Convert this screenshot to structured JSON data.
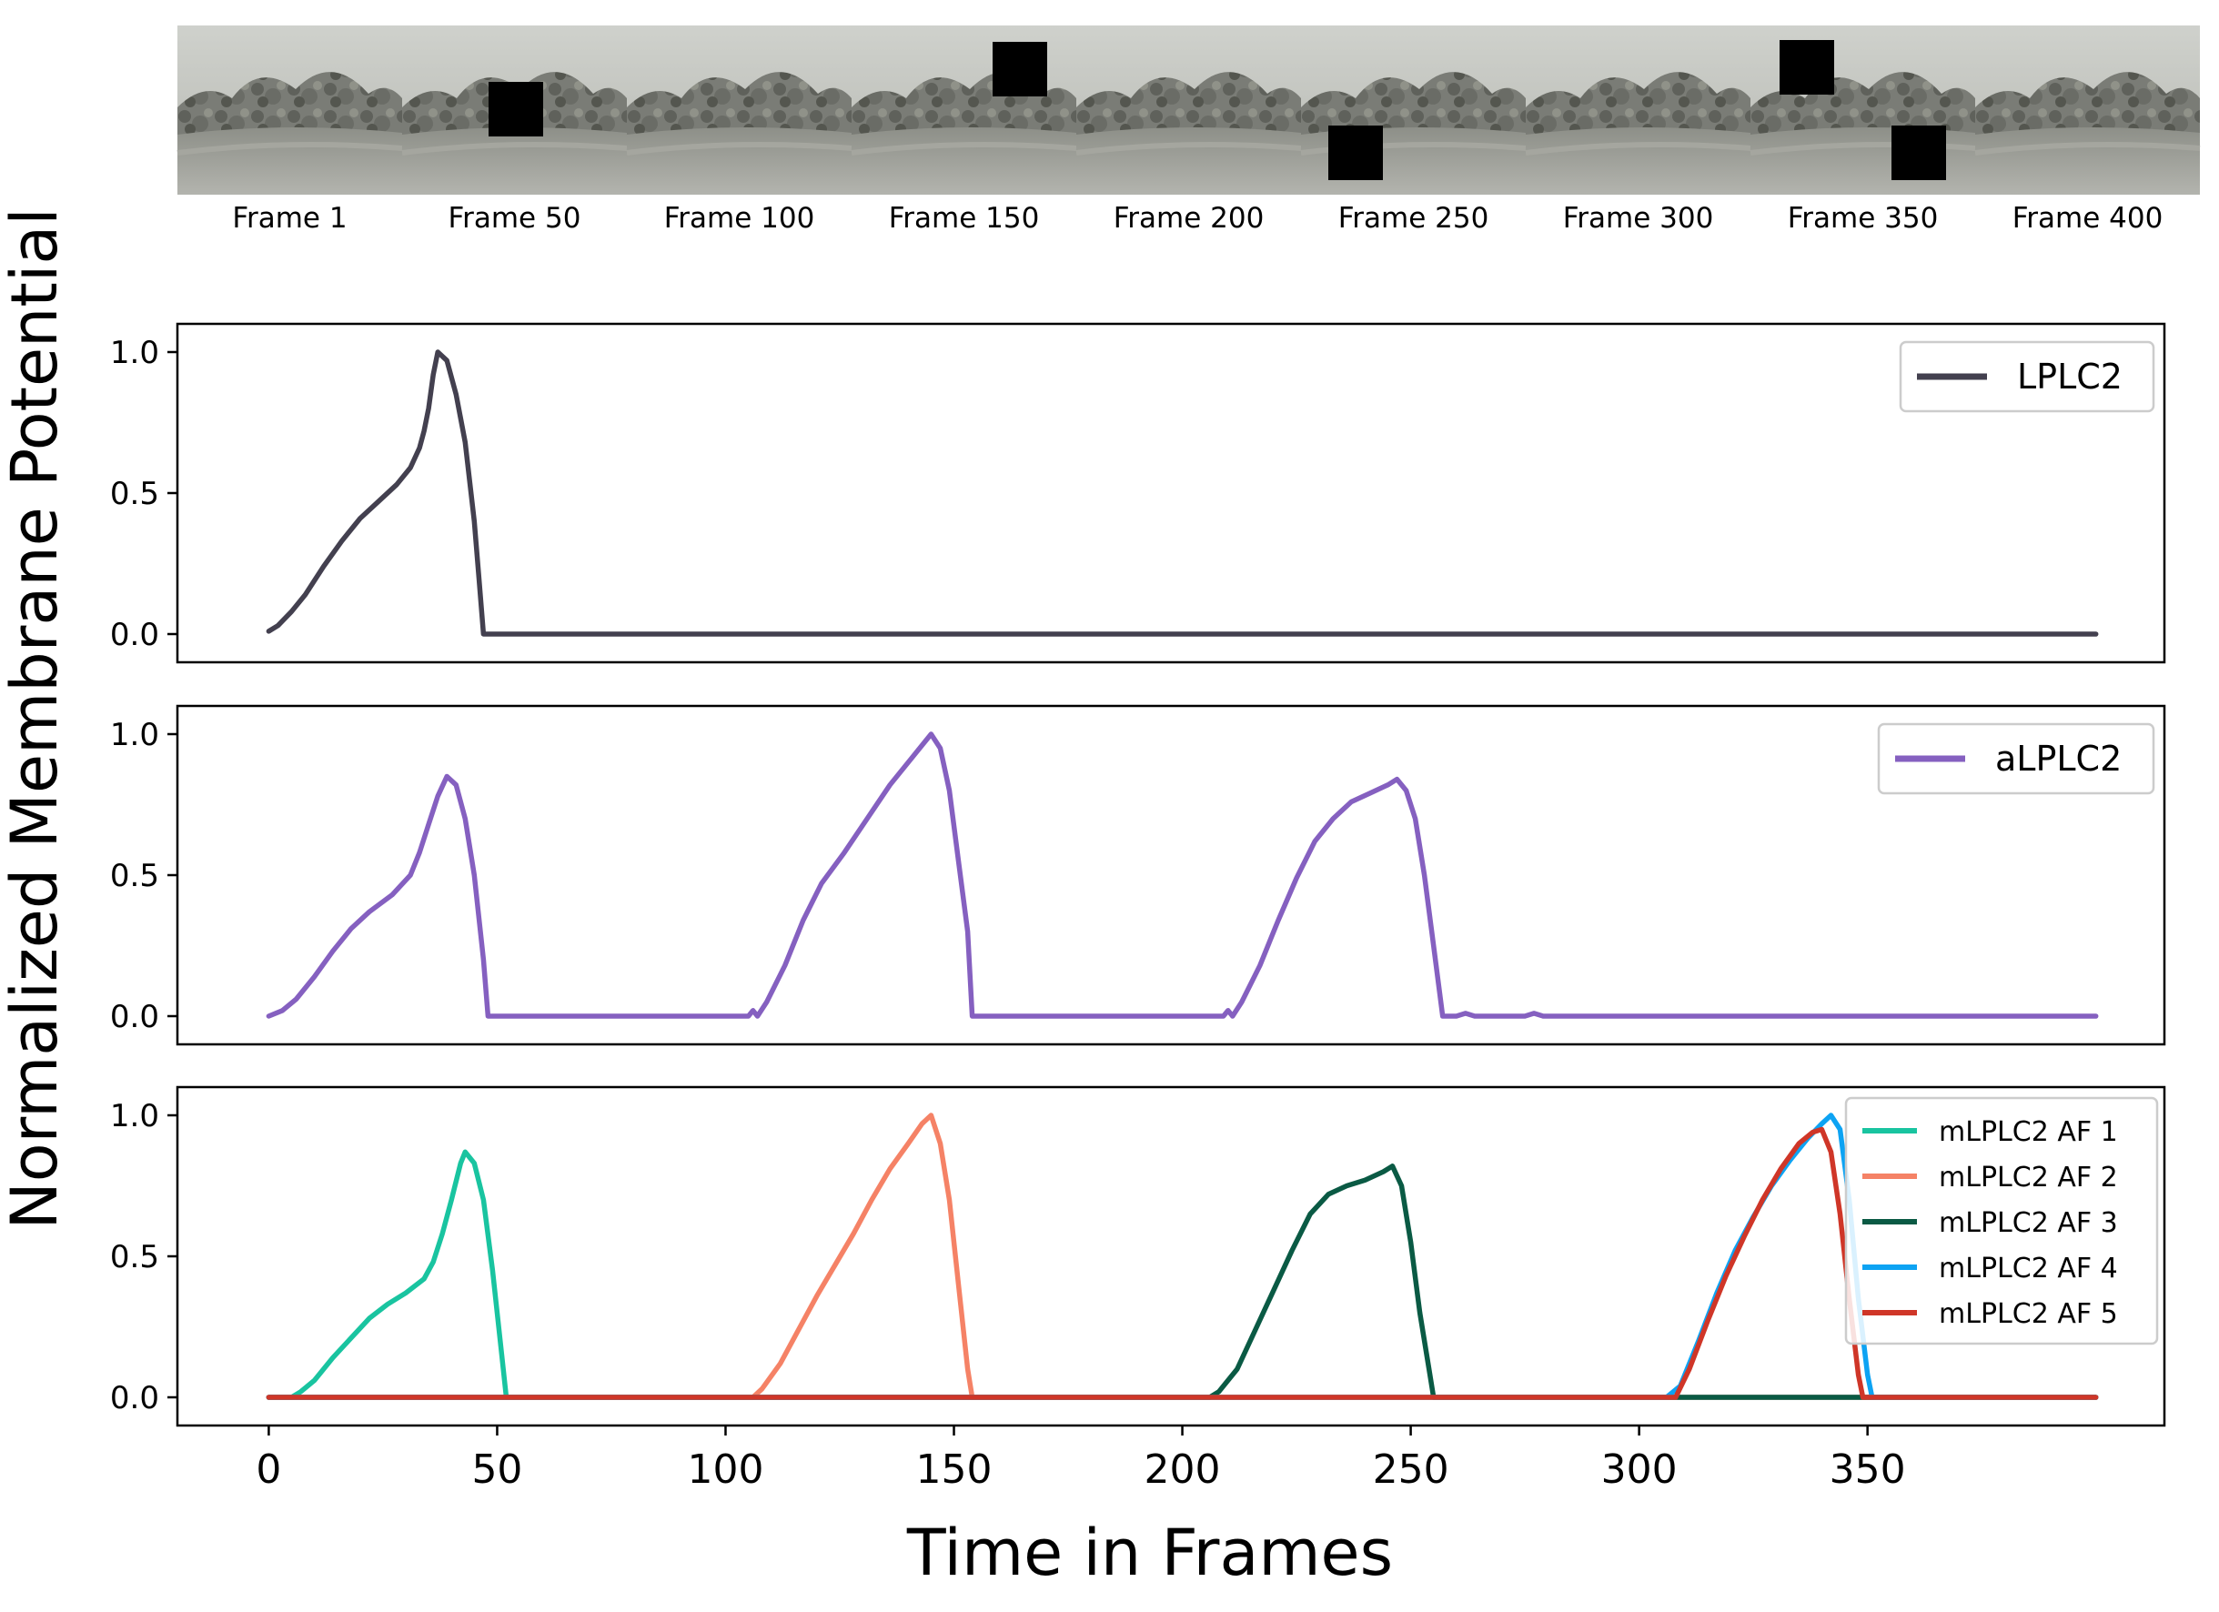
{
  "filmstrip": {
    "frames": [
      {
        "label": "Frame 1",
        "squares": []
      },
      {
        "label": "Frame 50",
        "squares": [
          "center"
        ]
      },
      {
        "label": "Frame 100",
        "squares": []
      },
      {
        "label": "Frame 150",
        "squares": [
          "top-right"
        ]
      },
      {
        "label": "Frame 200",
        "squares": []
      },
      {
        "label": "Frame 250",
        "squares": [
          "bottom-left"
        ]
      },
      {
        "label": "Frame 300",
        "squares": []
      },
      {
        "label": "Frame 350",
        "squares": [
          "top-left",
          "bottom-right"
        ]
      },
      {
        "label": "Frame 400",
        "squares": []
      }
    ]
  },
  "labels": {
    "ylabel": "Normalized Membrane Potential",
    "xlabel": "Time in Frames"
  },
  "chart_data": [
    {
      "type": "line",
      "panel": "top",
      "xlim": [
        -20,
        415
      ],
      "ylim": [
        -0.1,
        1.1
      ],
      "yticks": [
        "0.0",
        "0.5",
        "1.0"
      ],
      "ytick_values": [
        0,
        0.5,
        1.0
      ],
      "legend_placement": "top-right",
      "series": [
        {
          "name": "LPLC2",
          "color": "#43404f",
          "points": [
            [
              0,
              0.01
            ],
            [
              2,
              0.03
            ],
            [
              5,
              0.08
            ],
            [
              8,
              0.14
            ],
            [
              12,
              0.24
            ],
            [
              16,
              0.33
            ],
            [
              20,
              0.41
            ],
            [
              24,
              0.47
            ],
            [
              28,
              0.53
            ],
            [
              31,
              0.59
            ],
            [
              33,
              0.66
            ],
            [
              34,
              0.72
            ],
            [
              35,
              0.8
            ],
            [
              36,
              0.92
            ],
            [
              37,
              1.0
            ],
            [
              39,
              0.97
            ],
            [
              41,
              0.85
            ],
            [
              43,
              0.68
            ],
            [
              45,
              0.4
            ],
            [
              46,
              0.2
            ],
            [
              47,
              0.0
            ],
            [
              400,
              0.0
            ]
          ]
        }
      ]
    },
    {
      "type": "line",
      "panel": "middle",
      "xlim": [
        -20,
        415
      ],
      "ylim": [
        -0.1,
        1.1
      ],
      "yticks": [
        "0.0",
        "0.5",
        "1.0"
      ],
      "ytick_values": [
        0,
        0.5,
        1.0
      ],
      "legend_placement": "top-right",
      "series": [
        {
          "name": "aLPLC2",
          "color": "#8560c0",
          "points": [
            [
              0,
              0.0
            ],
            [
              3,
              0.02
            ],
            [
              6,
              0.06
            ],
            [
              10,
              0.14
            ],
            [
              14,
              0.23
            ],
            [
              18,
              0.31
            ],
            [
              22,
              0.37
            ],
            [
              27,
              0.43
            ],
            [
              31,
              0.5
            ],
            [
              33,
              0.58
            ],
            [
              35,
              0.68
            ],
            [
              37,
              0.78
            ],
            [
              39,
              0.85
            ],
            [
              41,
              0.82
            ],
            [
              43,
              0.7
            ],
            [
              45,
              0.5
            ],
            [
              47,
              0.2
            ],
            [
              48,
              0.0
            ],
            [
              105,
              0.0
            ],
            [
              106,
              0.02
            ],
            [
              107,
              0.0
            ],
            [
              109,
              0.05
            ],
            [
              113,
              0.18
            ],
            [
              117,
              0.34
            ],
            [
              121,
              0.47
            ],
            [
              126,
              0.58
            ],
            [
              131,
              0.7
            ],
            [
              136,
              0.82
            ],
            [
              141,
              0.92
            ],
            [
              145,
              1.0
            ],
            [
              147,
              0.95
            ],
            [
              149,
              0.8
            ],
            [
              151,
              0.55
            ],
            [
              153,
              0.3
            ],
            [
              154,
              0.0
            ],
            [
              209,
              0.0
            ],
            [
              210,
              0.02
            ],
            [
              211,
              0.0
            ],
            [
              213,
              0.05
            ],
            [
              217,
              0.18
            ],
            [
              221,
              0.34
            ],
            [
              225,
              0.49
            ],
            [
              229,
              0.62
            ],
            [
              233,
              0.7
            ],
            [
              237,
              0.76
            ],
            [
              241,
              0.79
            ],
            [
              245,
              0.82
            ],
            [
              247,
              0.84
            ],
            [
              249,
              0.8
            ],
            [
              251,
              0.7
            ],
            [
              253,
              0.5
            ],
            [
              255,
              0.25
            ],
            [
              257,
              0.0
            ],
            [
              260,
              0.0
            ],
            [
              262,
              0.01
            ],
            [
              264,
              0.0
            ],
            [
              275,
              0.0
            ],
            [
              277,
              0.01
            ],
            [
              279,
              0.0
            ],
            [
              400,
              0.0
            ]
          ]
        }
      ]
    },
    {
      "type": "line",
      "panel": "bottom",
      "xlim": [
        -20,
        415
      ],
      "ylim": [
        -0.1,
        1.1
      ],
      "yticks": [
        "0.0",
        "0.5",
        "1.0"
      ],
      "ytick_values": [
        0,
        0.5,
        1.0
      ],
      "xticks": [
        "0",
        "50",
        "100",
        "150",
        "200",
        "250",
        "300",
        "350"
      ],
      "xtick_values": [
        0,
        50,
        100,
        150,
        200,
        250,
        300,
        350
      ],
      "legend_placement": "top-right",
      "series": [
        {
          "name": "mLPLC2 AF 1",
          "color": "#19c4a0",
          "points": [
            [
              0,
              0.0
            ],
            [
              5,
              0.0
            ],
            [
              7,
              0.02
            ],
            [
              10,
              0.06
            ],
            [
              14,
              0.14
            ],
            [
              18,
              0.21
            ],
            [
              22,
              0.28
            ],
            [
              26,
              0.33
            ],
            [
              30,
              0.37
            ],
            [
              34,
              0.42
            ],
            [
              36,
              0.48
            ],
            [
              38,
              0.58
            ],
            [
              40,
              0.7
            ],
            [
              42,
              0.83
            ],
            [
              43,
              0.87
            ],
            [
              45,
              0.83
            ],
            [
              47,
              0.7
            ],
            [
              49,
              0.45
            ],
            [
              51,
              0.15
            ],
            [
              52,
              0.0
            ],
            [
              400,
              0.0
            ]
          ]
        },
        {
          "name": "mLPLC2 AF 2",
          "color": "#f58266",
          "points": [
            [
              0,
              0.0
            ],
            [
              106,
              0.0
            ],
            [
              108,
              0.03
            ],
            [
              112,
              0.12
            ],
            [
              116,
              0.24
            ],
            [
              120,
              0.36
            ],
            [
              124,
              0.47
            ],
            [
              128,
              0.58
            ],
            [
              132,
              0.7
            ],
            [
              136,
              0.81
            ],
            [
              140,
              0.9
            ],
            [
              143,
              0.97
            ],
            [
              145,
              1.0
            ],
            [
              147,
              0.9
            ],
            [
              149,
              0.7
            ],
            [
              151,
              0.4
            ],
            [
              153,
              0.1
            ],
            [
              154,
              0.0
            ],
            [
              400,
              0.0
            ]
          ]
        },
        {
          "name": "mLPLC2 AF 3",
          "color": "#0a5a44",
          "points": [
            [
              0,
              0.0
            ],
            [
              206,
              0.0
            ],
            [
              208,
              0.02
            ],
            [
              212,
              0.1
            ],
            [
              216,
              0.24
            ],
            [
              220,
              0.38
            ],
            [
              224,
              0.52
            ],
            [
              228,
              0.65
            ],
            [
              232,
              0.72
            ],
            [
              236,
              0.75
            ],
            [
              240,
              0.77
            ],
            [
              244,
              0.8
            ],
            [
              246,
              0.82
            ],
            [
              248,
              0.75
            ],
            [
              250,
              0.55
            ],
            [
              252,
              0.3
            ],
            [
              254,
              0.1
            ],
            [
              255,
              0.0
            ],
            [
              400,
              0.0
            ]
          ]
        },
        {
          "name": "mLPLC2 AF 4",
          "color": "#0da3f3",
          "points": [
            [
              0,
              0.0
            ],
            [
              306,
              0.0
            ],
            [
              309,
              0.04
            ],
            [
              313,
              0.2
            ],
            [
              317,
              0.37
            ],
            [
              321,
              0.52
            ],
            [
              325,
              0.64
            ],
            [
              329,
              0.75
            ],
            [
              333,
              0.84
            ],
            [
              337,
              0.92
            ],
            [
              340,
              0.97
            ],
            [
              342,
              1.0
            ],
            [
              344,
              0.95
            ],
            [
              346,
              0.7
            ],
            [
              348,
              0.35
            ],
            [
              350,
              0.08
            ],
            [
              351,
              0.0
            ],
            [
              400,
              0.0
            ]
          ]
        },
        {
          "name": "mLPLC2 AF 5",
          "color": "#cf3628",
          "points": [
            [
              0,
              0.0
            ],
            [
              308,
              0.0
            ],
            [
              311,
              0.1
            ],
            [
              315,
              0.27
            ],
            [
              319,
              0.43
            ],
            [
              323,
              0.57
            ],
            [
              327,
              0.7
            ],
            [
              331,
              0.81
            ],
            [
              335,
              0.9
            ],
            [
              338,
              0.94
            ],
            [
              340,
              0.95
            ],
            [
              342,
              0.87
            ],
            [
              344,
              0.65
            ],
            [
              346,
              0.35
            ],
            [
              348,
              0.08
            ],
            [
              349,
              0.0
            ],
            [
              400,
              0.0
            ]
          ]
        }
      ]
    }
  ]
}
